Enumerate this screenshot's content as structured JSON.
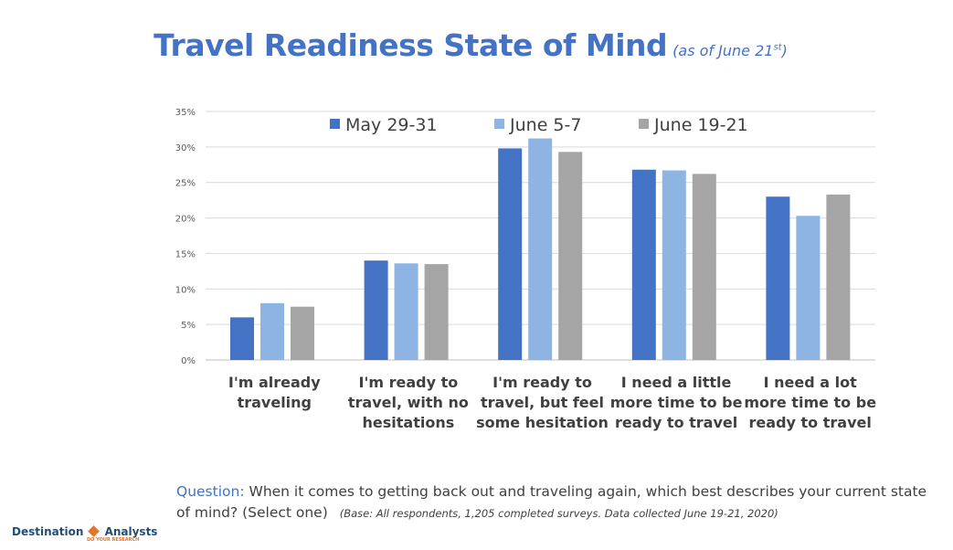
{
  "header": {
    "title": "Travel Readiness State of Mind",
    "subtitle_prefix": "(as of June 21",
    "subtitle_sup": "st",
    "subtitle_suffix": ")"
  },
  "question": {
    "label": "Question:",
    "text": "When it comes to getting back out and traveling again, which best describes your current state of mind? (Select one)",
    "base": "(Base: All respondents, 1,205 completed surveys. Data collected June 19-21, 2020)"
  },
  "logo": {
    "word1": "Destination",
    "word2": "Analysts",
    "tagline": "DO YOUR RESEARCH"
  },
  "chart_data": {
    "type": "bar",
    "categories": [
      [
        "I'm already",
        "traveling"
      ],
      [
        "I'm ready to",
        "travel, with no",
        "hesitations"
      ],
      [
        "I'm ready to",
        "travel, but feel",
        "some hesitation"
      ],
      [
        "I need a little",
        "more time to be",
        "ready to travel"
      ],
      [
        "I need a lot",
        "more time to be",
        "ready to travel"
      ]
    ],
    "series": [
      {
        "name": "May 29-31",
        "color": "#4472c4",
        "values": [
          6.0,
          14.0,
          29.8,
          26.8,
          23.0
        ]
      },
      {
        "name": "June 5-7",
        "color": "#8eb4e3",
        "values": [
          8.0,
          13.6,
          31.2,
          26.7,
          20.3
        ]
      },
      {
        "name": "June 19-21",
        "color": "#a5a5a5",
        "values": [
          7.5,
          13.5,
          29.3,
          26.2,
          23.3
        ]
      }
    ],
    "yticks": [
      "0%",
      "5%",
      "10%",
      "15%",
      "20%",
      "25%",
      "30%",
      "35%"
    ],
    "ylim": [
      0,
      35
    ],
    "grid": true,
    "legend_position": "top"
  }
}
